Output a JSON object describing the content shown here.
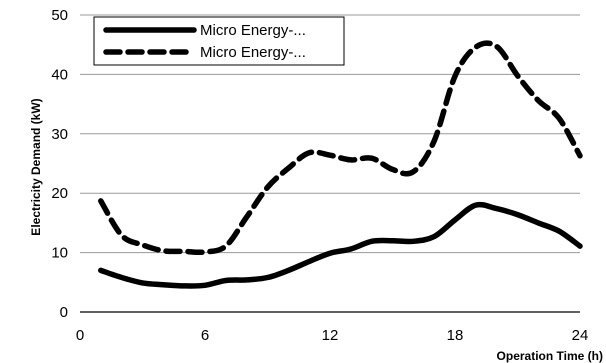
{
  "chart_data": {
    "type": "line",
    "xlabel": "Operation Time (h)",
    "ylabel": "Electricity Demand (kW)",
    "xlim": [
      0,
      24
    ],
    "ylim": [
      0,
      50
    ],
    "xticks": [
      0,
      6,
      12,
      18,
      24
    ],
    "yticks": [
      0,
      10,
      20,
      30,
      40,
      50
    ],
    "grid": "horizontal",
    "legend_position": "top-left",
    "series": [
      {
        "name": "Micro Energy-...",
        "style": "solid",
        "color": "#000000",
        "x": [
          1,
          2,
          3,
          4,
          5,
          6,
          7,
          8,
          9,
          10,
          11,
          12,
          13,
          14,
          15,
          16,
          17,
          18,
          19,
          20,
          21,
          22,
          23,
          24
        ],
        "values": [
          7.0,
          5.8,
          4.9,
          4.6,
          4.4,
          4.5,
          5.3,
          5.4,
          5.8,
          7.0,
          8.5,
          9.9,
          10.6,
          11.9,
          12.0,
          11.9,
          12.7,
          15.5,
          18.0,
          17.4,
          16.4,
          15.0,
          13.6,
          11.1
        ]
      },
      {
        "name": "Micro Energy-...",
        "style": "dashed",
        "color": "#000000",
        "x": [
          1,
          2,
          3,
          4,
          5,
          6,
          7,
          8,
          9,
          10,
          11,
          12,
          13,
          14,
          15,
          16,
          17,
          18,
          19,
          20,
          21,
          22,
          23,
          24
        ],
        "values": [
          18.7,
          12.9,
          11.3,
          10.3,
          10.2,
          10.1,
          11.1,
          16.0,
          21.0,
          24.2,
          26.8,
          26.4,
          25.6,
          25.9,
          24.0,
          23.6,
          28.8,
          39.7,
          44.6,
          44.7,
          39.8,
          35.6,
          32.6,
          26.3
        ]
      }
    ]
  }
}
